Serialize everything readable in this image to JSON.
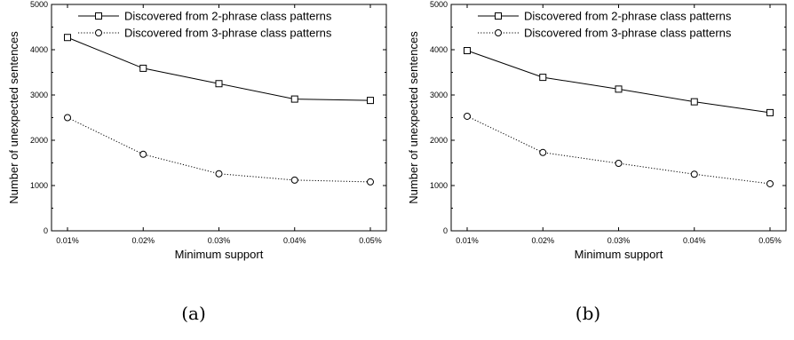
{
  "chart_data": [
    {
      "type": "line",
      "caption": "(a)",
      "categories": [
        "0.01%",
        "0.02%",
        "0.03%",
        "0.04%",
        "0.05%"
      ],
      "xlabel": "Minimum support",
      "ylabel": "Number of unexpected sentences",
      "ylim": [
        0,
        5000
      ],
      "yticks": [
        0,
        1000,
        2000,
        3000,
        4000,
        5000
      ],
      "legend_position": "top-right",
      "series": [
        {
          "name": "Discovered from 2-phrase class patterns",
          "marker": "square",
          "line": "solid",
          "values": [
            4270,
            3590,
            3250,
            2910,
            2880
          ]
        },
        {
          "name": "Discovered from 3-phrase class patterns",
          "marker": "circle",
          "line": "dotted",
          "values": [
            2500,
            1690,
            1260,
            1120,
            1080
          ]
        }
      ]
    },
    {
      "type": "line",
      "caption": "(b)",
      "categories": [
        "0.01%",
        "0.02%",
        "0.03%",
        "0.04%",
        "0.05%"
      ],
      "xlabel": "Minimum support",
      "ylabel": "Number of unexpected sentences",
      "ylim": [
        0,
        5000
      ],
      "yticks": [
        0,
        1000,
        2000,
        3000,
        4000,
        5000
      ],
      "legend_position": "top-right",
      "series": [
        {
          "name": "Discovered from 2-phrase class patterns",
          "marker": "square",
          "line": "solid",
          "values": [
            3980,
            3390,
            3130,
            2850,
            2610
          ]
        },
        {
          "name": "Discovered from 3-phrase class patterns",
          "marker": "circle",
          "line": "dotted",
          "values": [
            2530,
            1730,
            1490,
            1250,
            1040
          ]
        }
      ]
    }
  ]
}
